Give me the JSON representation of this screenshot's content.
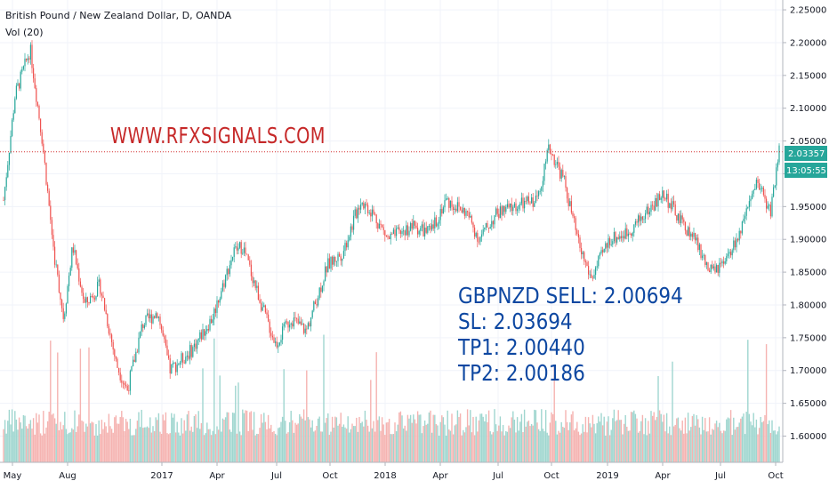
{
  "header": {
    "symbol_line": "British Pound / New Zealand Dollar, D, OANDA",
    "volume_label": "Vol (20)"
  },
  "watermark_text": "WWW.RFXSIGNALS.COM",
  "signal": {
    "sell": "GBPNZD SELL: 2.00694",
    "sl": "SL: 2.03694",
    "tp1": "TP1: 2.00440",
    "tp2": "TP2: 2.00186"
  },
  "price_axis": {
    "current_price": "2.03357",
    "countdown": "13:05:55"
  },
  "colors": {
    "up": "#26a69a",
    "down": "#ef5350",
    "up_volume": "#9fd6cf",
    "down_volume": "#f5b3b1",
    "price_line": "#d32f2f",
    "watermark": "#c62828",
    "signal_text": "#0d47a1"
  },
  "chart_data": {
    "type": "candlestick",
    "title": "British Pound / New Zealand Dollar, D, OANDA",
    "indicator": "Vol (20)",
    "ylim": [
      1.56,
      2.265
    ],
    "y_ticks": [
      "2.25000",
      "2.20000",
      "2.15000",
      "2.10000",
      "2.05000",
      "2.00000",
      "1.95000",
      "1.90000",
      "1.85000",
      "1.80000",
      "1.75000",
      "1.70000",
      "1.65000",
      "1.60000"
    ],
    "x_ticks": [
      "May",
      "Aug",
      "2017",
      "Apr",
      "Jul",
      "Oct",
      "2018",
      "Apr",
      "Jul",
      "Oct",
      "2019",
      "Apr",
      "Jul",
      "Oct"
    ],
    "x_range": [
      "2016-04",
      "2019-10"
    ],
    "current_price": 2.03357,
    "price_path": [
      [
        "2016-04",
        1.96
      ],
      [
        "2016-04-20",
        2.12
      ],
      [
        "2016-05-15",
        2.19
      ],
      [
        "2016-06-05",
        2.05
      ],
      [
        "2016-06-24",
        1.88
      ],
      [
        "2016-07-10",
        1.78
      ],
      [
        "2016-07-25",
        1.89
      ],
      [
        "2016-08-15",
        1.8
      ],
      [
        "2016-09-10",
        1.83
      ],
      [
        "2016-10-07",
        1.71
      ],
      [
        "2016-10-25",
        1.67
      ],
      [
        "2016-11-20",
        1.77
      ],
      [
        "2016-12-15",
        1.79
      ],
      [
        "2017-01-05",
        1.7
      ],
      [
        "2017-02-10",
        1.73
      ],
      [
        "2017-03-15",
        1.78
      ],
      [
        "2017-04-20",
        1.88
      ],
      [
        "2017-05-05",
        1.89
      ],
      [
        "2017-06-10",
        1.79
      ],
      [
        "2017-06-30",
        1.74
      ],
      [
        "2017-07-25",
        1.78
      ],
      [
        "2017-08-20",
        1.76
      ],
      [
        "2017-09-25",
        1.86
      ],
      [
        "2017-10-20",
        1.88
      ],
      [
        "2017-11-20",
        1.96
      ],
      [
        "2017-12-10",
        1.94
      ],
      [
        "2018-01-05",
        1.9
      ],
      [
        "2018-02-15",
        1.92
      ],
      [
        "2018-03-15",
        1.91
      ],
      [
        "2018-04-10",
        1.96
      ],
      [
        "2018-05-15",
        1.94
      ],
      [
        "2018-06-05",
        1.9
      ],
      [
        "2018-07-05",
        1.94
      ],
      [
        "2018-08-05",
        1.95
      ],
      [
        "2018-09-10",
        1.96
      ],
      [
        "2018-10-01",
        2.04
      ],
      [
        "2018-10-25",
        1.99
      ],
      [
        "2018-11-20",
        1.89
      ],
      [
        "2018-12-10",
        1.84
      ],
      [
        "2019-01-10",
        1.9
      ],
      [
        "2019-02-10",
        1.91
      ],
      [
        "2019-03-10",
        1.94
      ],
      [
        "2019-04-10",
        1.97
      ],
      [
        "2019-05-05",
        1.93
      ],
      [
        "2019-06-01",
        1.9
      ],
      [
        "2019-06-25",
        1.85
      ],
      [
        "2019-07-20",
        1.86
      ],
      [
        "2019-08-20",
        1.92
      ],
      [
        "2019-09-15",
        1.99
      ],
      [
        "2019-10-05",
        1.94
      ],
      [
        "2019-10-20",
        2.03357
      ]
    ]
  }
}
